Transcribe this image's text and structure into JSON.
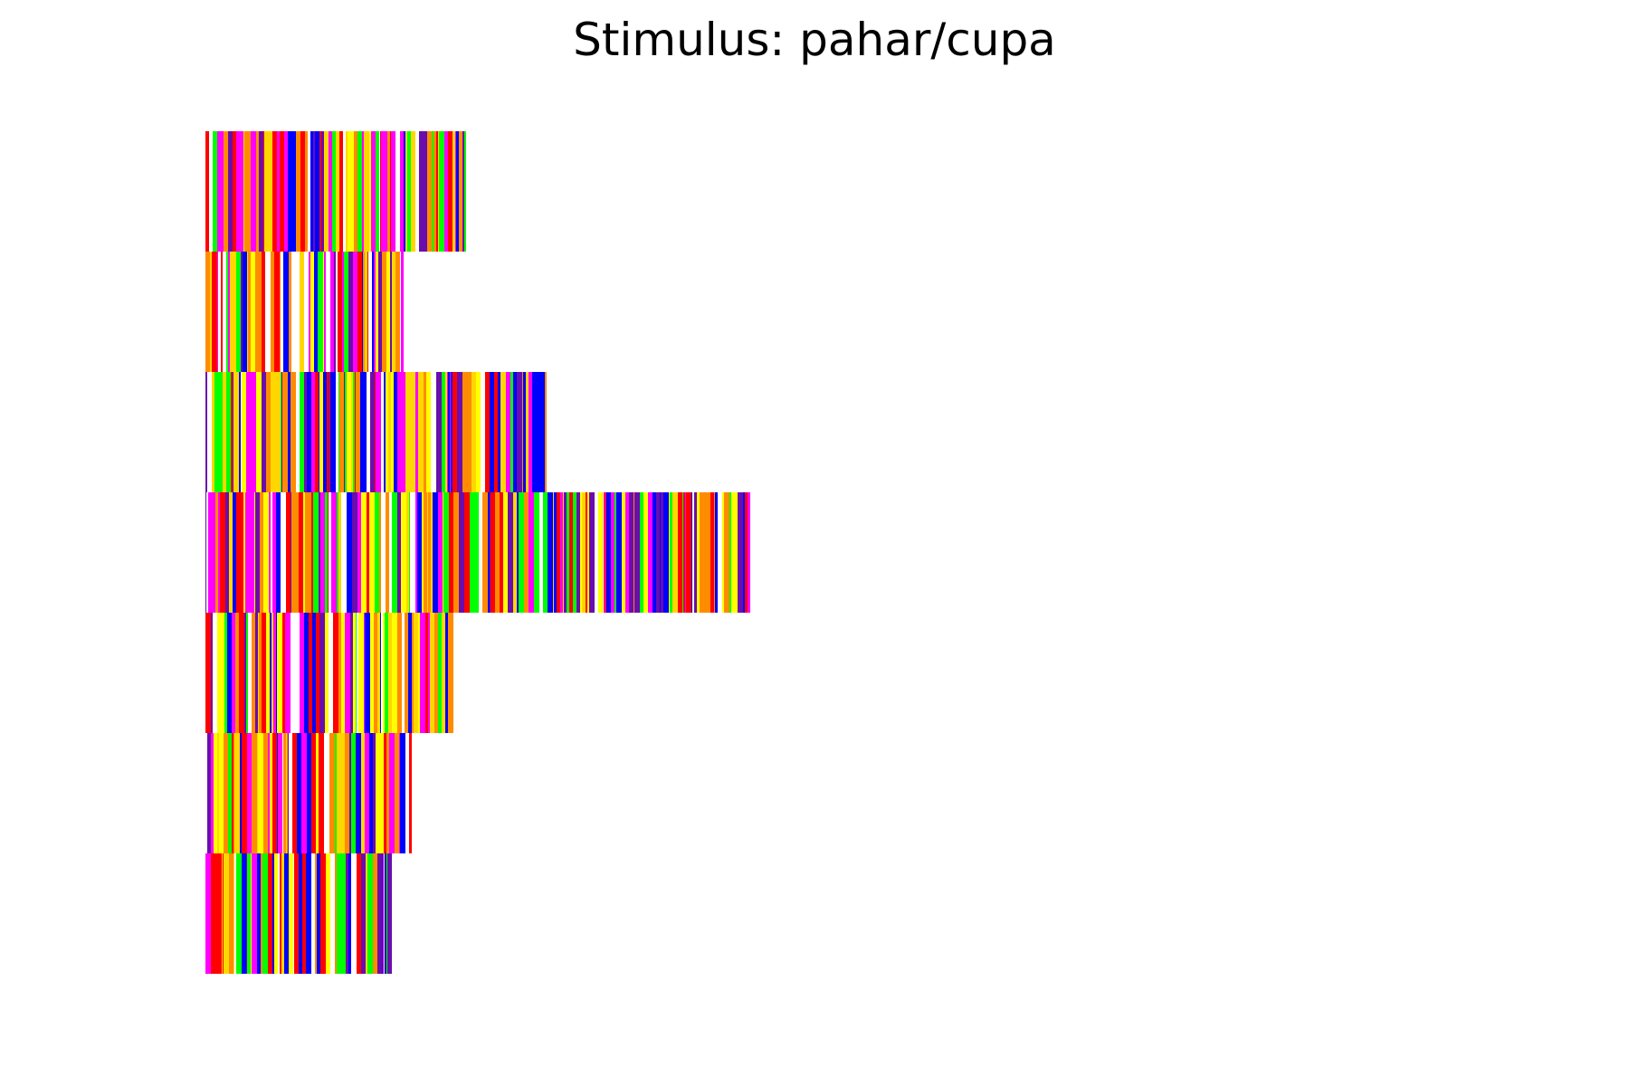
{
  "chart_data": {
    "type": "heatmap",
    "title": "Stimulus: pahar/cupa",
    "xlabel": "",
    "ylabel": "",
    "grid": false,
    "axes_visible": false,
    "legend": "none",
    "palette": [
      "#0000ff",
      "#6a0dad",
      "#ff0000",
      "#ff8c00",
      "#ffd700",
      "#ffff00",
      "#00ff00",
      "#ff00ff",
      "#ffffff"
    ],
    "x_max": 600,
    "rows": [
      {
        "length": 288
      },
      {
        "length": 219
      },
      {
        "length": 377
      },
      {
        "length": 602
      },
      {
        "length": 274
      },
      {
        "length": 228
      },
      {
        "length": 206
      }
    ]
  }
}
